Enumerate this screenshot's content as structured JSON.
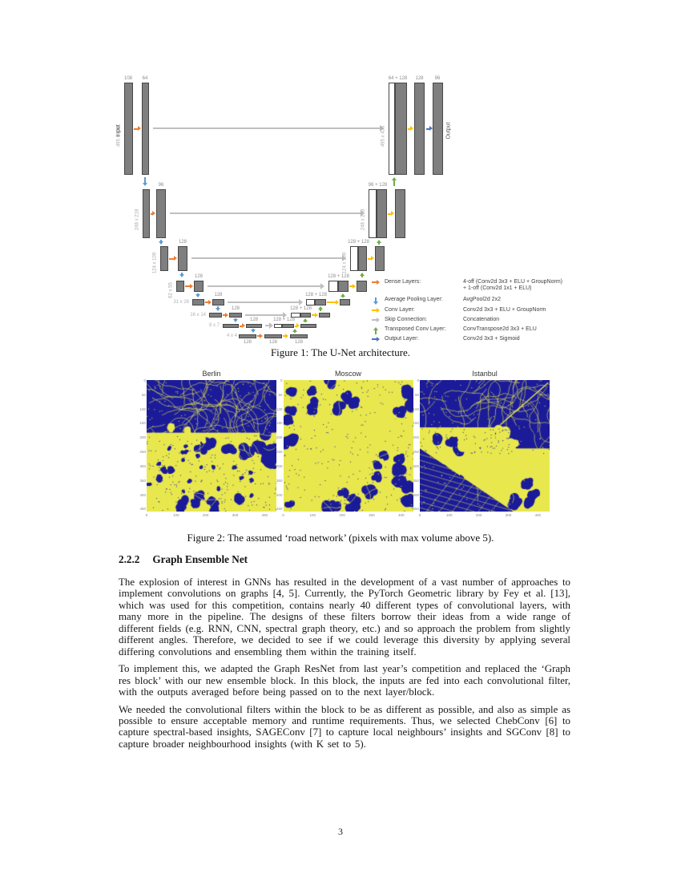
{
  "page": {
    "number": "3"
  },
  "figure1": {
    "caption": "Figure 1: The U-Net architecture.",
    "input_label": "Input",
    "output_label": "Output",
    "levels": [
      {
        "size": "495 x 436",
        "enc_top": [
          "108",
          "64"
        ],
        "dec_concat": "64 + 128",
        "dec_top": [
          "128",
          "96"
        ],
        "dec_size": "495 x 436"
      },
      {
        "size": "248 x 218",
        "enc_top": [
          "96"
        ],
        "dec_concat": "96 + 128",
        "dec_size": "248 x 218"
      },
      {
        "size": "124 x 109",
        "enc_top": [
          "128"
        ],
        "dec_concat": "128 + 128",
        "dec_size": "124 x 109"
      },
      {
        "size": "62 x 55",
        "enc_top": [
          "128"
        ],
        "dec_concat": "128 + 128"
      },
      {
        "size": "31 x 28",
        "enc_top": [
          "128"
        ],
        "dec_concat": "128 + 128"
      },
      {
        "size": "16 x 14",
        "enc_top": [
          "128"
        ],
        "dec_concat": "128 + 128"
      },
      {
        "size": "8 x 7",
        "enc_top": [
          "128"
        ],
        "dec_concat": "128 + 128"
      }
    ],
    "bottom": {
      "size": "4 x 4",
      "labels": [
        "128",
        "128",
        "128"
      ]
    },
    "legend": [
      {
        "id": "dense",
        "dir": "r",
        "color": "#ED7D31",
        "label": "Dense Layers:",
        "value": "4-off (Conv2d 3x3 + ELU + GroupNorm)\n+ 1-off (Conv2d 1x1 + ELU)"
      },
      {
        "id": "avgpool",
        "dir": "d",
        "color": "#5B9BD5",
        "label": "Average Pooling Layer:",
        "value": "AvgPool2d 2x2"
      },
      {
        "id": "conv",
        "dir": "r",
        "color": "#FFC000",
        "label": "Conv Layer:",
        "value": "Conv2d 3x3 + ELU + GroupNorm"
      },
      {
        "id": "skip",
        "dir": "r",
        "color": "#BFBFBF",
        "label": "Skip Connection:",
        "value": "Concatenation"
      },
      {
        "id": "transposed",
        "dir": "u",
        "color": "#70AD47",
        "label": "Transposed Conv Layer:",
        "value": "ConvTranspose2d 3x3 + ELU"
      },
      {
        "id": "output",
        "dir": "r",
        "color": "#4472C4",
        "label": "Output Layer:",
        "value": "Conv2d 3x3 + Sigmoid"
      }
    ],
    "colors": {
      "bar": "#7f7f7f",
      "dense": "#ED7D31",
      "pool": "#5B9BD5",
      "conv": "#FFC000",
      "skip": "#BFBFBF",
      "transposed": "#70AD47",
      "output": "#4472C4"
    }
  },
  "figure2": {
    "caption": "Figure 2: The assumed ‘road network’ (pixels with max volume above 5).",
    "panels": [
      {
        "title": "Berlin"
      },
      {
        "title": "Moscow"
      },
      {
        "title": "Istanbul"
      }
    ],
    "x_ticks": [
      "0",
      "100",
      "200",
      "300",
      "400"
    ],
    "y_ticks": [
      "0",
      "50",
      "100",
      "150",
      "200",
      "250",
      "300",
      "350",
      "400",
      "450"
    ],
    "colors": {
      "road": "#e8e84e",
      "no_road": "#1b1b9a"
    }
  },
  "section": {
    "number": "2.2.2",
    "title": "Graph Ensemble Net"
  },
  "paragraphs": [
    "The explosion of interest in GNNs has resulted in the development of a vast number of approaches to implement convolutions on graphs [4, 5]. Currently, the PyTorch Geometric library by Fey et al. [13], which was used for this competition, contains nearly 40 different types of convolutional layers, with many more in the pipeline. The designs of these filters borrow their ideas from a wide range of different fields (e.g. RNN, CNN, spectral graph theory, etc.) and so approach the problem from slightly different angles. Therefore, we decided to see if we could leverage this diversity by applying several differing convolutions and ensembling them within the training itself.",
    "To implement this, we adapted the Graph ResNet from last year’s competition and replaced the ‘Graph res block’ with our new ensemble block. In this block, the inputs are fed into each convolutional filter, with the outputs averaged before being passed on to the next layer/block.",
    "We needed the convolutional filters within the block to be as different as possible, and also as simple as possible to ensure acceptable memory and runtime requirements. Thus, we selected ChebConv [6] to capture spectral-based insights, SAGEConv [7] to capture local neighbours’ insights and SGConv [8] to capture broader neighbourhood insights (with K set to 5)."
  ]
}
